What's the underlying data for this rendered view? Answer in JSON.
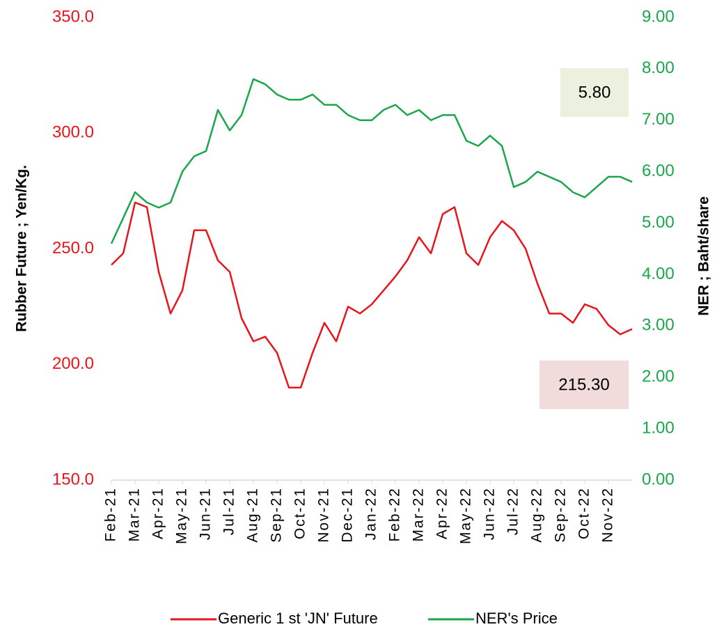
{
  "chart_data": {
    "type": "line",
    "y_axis_label": "Rubber Future ; Yen/Kg.",
    "y2_axis_label": "NER ; Baht/share",
    "categories": [
      "Feb-21",
      null,
      "Mar-21",
      null,
      "Apr-21",
      null,
      "May-21",
      null,
      "Jun-21",
      null,
      "Jul-21",
      null,
      "Aug-21",
      null,
      "Sep-21",
      null,
      "Oct-21",
      null,
      "Nov-21",
      null,
      "Dec-21",
      null,
      "Jan-22",
      null,
      "Feb-22",
      null,
      "Mar-22",
      null,
      "Apr-22",
      null,
      "May-22",
      null,
      "Jun-22",
      null,
      "Jul-22",
      null,
      "Aug-22",
      null,
      "Sep-22",
      null,
      "Oct-22",
      null,
      "Nov-22",
      null,
      null
    ],
    "series": [
      {
        "name": "Generic 1 st 'JN' Future",
        "color": "#e8141b",
        "axis": "y",
        "values": [
          243,
          248,
          270,
          268,
          240,
          222,
          232,
          258,
          258,
          245,
          240,
          220,
          210,
          212,
          205,
          190,
          190,
          205,
          218,
          210,
          225,
          222,
          226,
          232,
          238,
          245,
          255,
          248,
          265,
          268,
          248,
          243,
          255,
          262,
          258,
          250,
          235,
          222,
          222,
          218,
          226,
          224,
          217,
          213,
          215.3
        ]
      },
      {
        "name": "NER's Price",
        "color": "#1aa64b",
        "axis": "y2",
        "values": [
          4.6,
          5.1,
          5.6,
          5.4,
          5.3,
          5.4,
          6.0,
          6.3,
          6.4,
          7.2,
          6.8,
          7.1,
          7.8,
          7.7,
          7.5,
          7.4,
          7.4,
          7.5,
          7.3,
          7.3,
          7.1,
          7.0,
          7.0,
          7.2,
          7.3,
          7.1,
          7.2,
          7.0,
          7.1,
          7.1,
          6.6,
          6.5,
          6.7,
          6.5,
          5.7,
          5.8,
          6.0,
          5.9,
          5.8,
          5.6,
          5.5,
          5.7,
          5.9,
          5.9,
          5.8
        ]
      }
    ],
    "ylim": [
      150,
      350
    ],
    "yticks": [
      {
        "value": 150,
        "label": "150.0"
      },
      {
        "value": 200,
        "label": "200.0"
      },
      {
        "value": 250,
        "label": "250.0"
      },
      {
        "value": 300,
        "label": "300.0"
      },
      {
        "value": 350,
        "label": "350.0"
      }
    ],
    "y2lim": [
      0,
      9
    ],
    "y2ticks": [
      {
        "value": 0,
        "label": "0.00"
      },
      {
        "value": 1,
        "label": "1.00"
      },
      {
        "value": 2,
        "label": "2.00"
      },
      {
        "value": 3,
        "label": "3.00"
      },
      {
        "value": 4,
        "label": "4.00"
      },
      {
        "value": 5,
        "label": "5.00"
      },
      {
        "value": 6,
        "label": "6.00"
      },
      {
        "value": 7,
        "label": "7.00"
      },
      {
        "value": 8,
        "label": "8.00"
      },
      {
        "value": 9,
        "label": "9.00"
      }
    ],
    "annotations": [
      "5.80",
      "215.30"
    ],
    "legend": "bottom"
  }
}
